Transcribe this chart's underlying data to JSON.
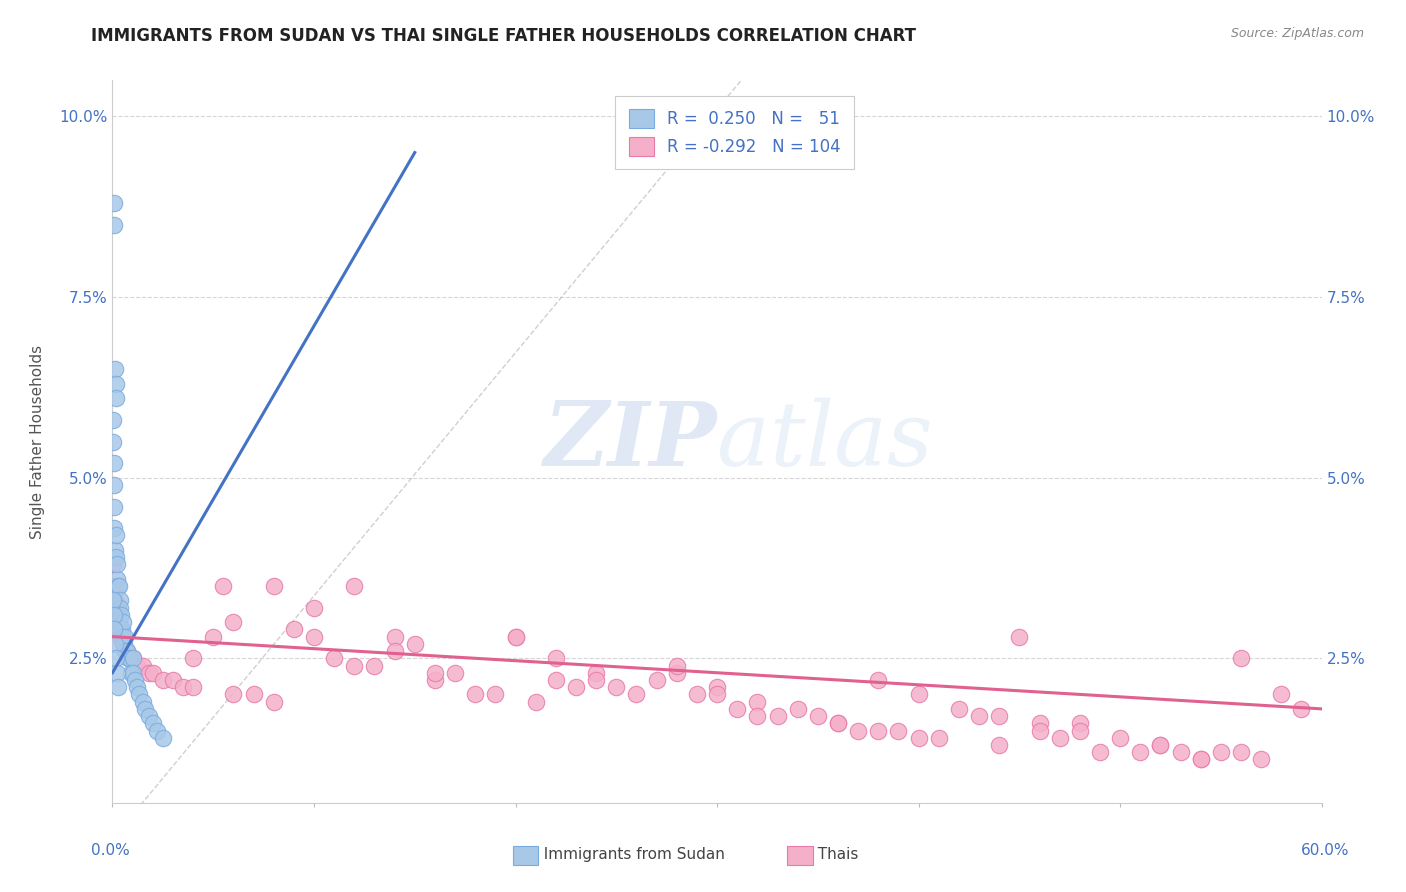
{
  "title": "IMMIGRANTS FROM SUDAN VS THAI SINGLE FATHER HOUSEHOLDS CORRELATION CHART",
  "source": "Source: ZipAtlas.com",
  "ylabel": "Single Father Households",
  "xmin": 0.0,
  "xmax": 60.0,
  "ymin": 0.5,
  "ymax": 10.5,
  "yticks": [
    2.5,
    5.0,
    7.5,
    10.0
  ],
  "xticks": [
    0.0,
    10.0,
    20.0,
    30.0,
    40.0,
    50.0,
    60.0
  ],
  "background_color": "#ffffff",
  "grid_color": "#cccccc",
  "legend_R1": "0.250",
  "legend_N1": "51",
  "legend_R2": "-0.292",
  "legend_N2": "104",
  "blue_color": "#a8c8e8",
  "pink_color": "#f4b0c8",
  "blue_edge_color": "#7aabe0",
  "pink_edge_color": "#e87aaa",
  "blue_line_color": "#4472c4",
  "pink_line_color": "#e06090",
  "blue_text_color": "#4472c4",
  "sudan_points_x": [
    0.08,
    0.08,
    0.12,
    0.15,
    0.18,
    0.05,
    0.05,
    0.07,
    0.09,
    0.1,
    0.1,
    0.12,
    0.15,
    0.15,
    0.2,
    0.2,
    0.25,
    0.25,
    0.3,
    0.3,
    0.35,
    0.35,
    0.4,
    0.45,
    0.5,
    0.5,
    0.55,
    0.6,
    0.6,
    0.7,
    0.75,
    0.8,
    0.9,
    1.0,
    1.0,
    1.1,
    1.2,
    1.3,
    1.5,
    1.6,
    1.8,
    2.0,
    2.2,
    2.5,
    0.05,
    0.08,
    0.1,
    0.12,
    0.15,
    0.2,
    0.25
  ],
  "sudan_points_y": [
    8.8,
    8.5,
    6.5,
    6.3,
    6.1,
    5.8,
    5.5,
    5.2,
    4.9,
    4.6,
    4.3,
    4.0,
    4.2,
    3.9,
    3.6,
    3.8,
    3.5,
    3.2,
    3.5,
    3.0,
    3.3,
    3.2,
    3.1,
    2.9,
    3.0,
    2.8,
    2.7,
    2.8,
    2.6,
    2.6,
    2.5,
    2.5,
    2.3,
    2.5,
    2.3,
    2.2,
    2.1,
    2.0,
    1.9,
    1.8,
    1.7,
    1.6,
    1.5,
    1.4,
    3.3,
    3.1,
    2.9,
    2.7,
    2.5,
    2.3,
    2.1
  ],
  "thai_points_x": [
    0.05,
    0.08,
    0.1,
    0.12,
    0.15,
    0.18,
    0.2,
    0.25,
    0.3,
    0.35,
    0.4,
    0.5,
    0.5,
    0.6,
    0.7,
    0.8,
    0.9,
    1.0,
    1.2,
    1.5,
    1.8,
    2.0,
    2.5,
    3.0,
    3.5,
    4.0,
    5.0,
    5.5,
    6.0,
    7.0,
    8.0,
    9.0,
    10.0,
    11.0,
    12.0,
    13.0,
    14.0,
    15.0,
    16.0,
    17.0,
    18.0,
    19.0,
    20.0,
    21.0,
    22.0,
    23.0,
    24.0,
    25.0,
    26.0,
    27.0,
    28.0,
    29.0,
    30.0,
    31.0,
    32.0,
    33.0,
    34.0,
    35.0,
    36.0,
    37.0,
    38.0,
    39.0,
    40.0,
    41.0,
    42.0,
    43.0,
    44.0,
    45.0,
    46.0,
    47.0,
    48.0,
    49.0,
    50.0,
    51.0,
    52.0,
    53.0,
    54.0,
    55.0,
    56.0,
    57.0,
    58.0,
    59.0,
    4.0,
    8.0,
    12.0,
    16.0,
    20.0,
    24.0,
    28.0,
    32.0,
    36.0,
    40.0,
    44.0,
    48.0,
    52.0,
    56.0,
    6.0,
    14.0,
    22.0,
    30.0,
    38.0,
    46.0,
    54.0,
    10.0
  ],
  "thai_points_y": [
    3.8,
    3.5,
    3.4,
    3.3,
    3.2,
    3.1,
    3.0,
    3.0,
    2.9,
    2.8,
    2.8,
    2.7,
    2.7,
    2.6,
    2.6,
    2.5,
    2.5,
    2.5,
    2.4,
    2.4,
    2.3,
    2.3,
    2.2,
    2.2,
    2.1,
    2.1,
    2.8,
    3.5,
    2.0,
    2.0,
    1.9,
    2.9,
    3.2,
    2.5,
    3.5,
    2.4,
    2.8,
    2.7,
    2.2,
    2.3,
    2.0,
    2.0,
    2.8,
    1.9,
    2.5,
    2.1,
    2.3,
    2.1,
    2.0,
    2.2,
    2.3,
    2.0,
    2.1,
    1.8,
    1.9,
    1.7,
    1.8,
    1.7,
    1.6,
    1.5,
    1.5,
    1.5,
    2.0,
    1.4,
    1.8,
    1.7,
    1.7,
    2.8,
    1.6,
    1.4,
    1.6,
    1.2,
    1.4,
    1.2,
    1.3,
    1.2,
    1.1,
    1.2,
    2.5,
    1.1,
    2.0,
    1.8,
    2.5,
    3.5,
    2.4,
    2.3,
    2.8,
    2.2,
    2.4,
    1.7,
    1.6,
    1.4,
    1.3,
    1.5,
    1.3,
    1.2,
    3.0,
    2.6,
    2.2,
    2.0,
    2.2,
    1.5,
    1.1,
    2.8
  ],
  "sudan_line_x": [
    0.0,
    15.0
  ],
  "sudan_line_y": [
    2.3,
    9.5
  ],
  "thai_line_x": [
    0.0,
    60.0
  ],
  "thai_line_y": [
    2.8,
    1.8
  ]
}
